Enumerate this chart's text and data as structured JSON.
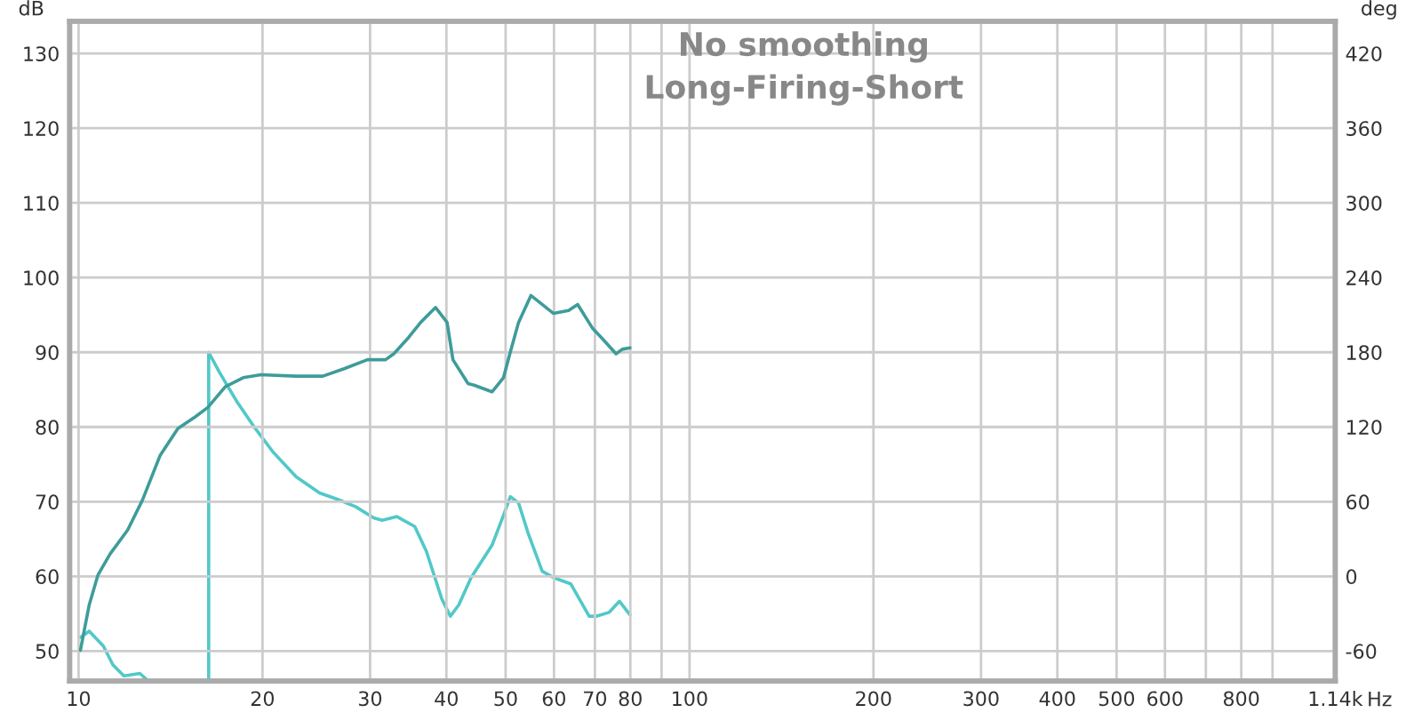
{
  "chart_data": {
    "type": "line",
    "title": "No smoothing",
    "subtitle": "Long-Firing-Short",
    "xlabel": "Hz",
    "ylabel": "dB",
    "y2label": "deg",
    "log": "x",
    "grid": true,
    "marker": "none",
    "line_style": "solid",
    "xlim": [
      9.67,
      1140
    ],
    "xticks": [
      10,
      20,
      30,
      40,
      50,
      60,
      70,
      80,
      {
        "value": 90,
        "label": null
      },
      100,
      200,
      300,
      400,
      500,
      600,
      {
        "value": 700,
        "label": null
      },
      800,
      {
        "value": 900,
        "label": null
      },
      {
        "value": 1140,
        "label": "1.14k"
      }
    ],
    "ylim": [
      46,
      134.3
    ],
    "yticks": [
      50,
      60,
      70,
      80,
      90,
      100,
      110,
      120,
      130
    ],
    "y2lim": [
      -84,
      445.8
    ],
    "y2ticks": [
      -60,
      0,
      60,
      120,
      180,
      240,
      300,
      360,
      420
    ],
    "series": [
      {
        "color": "#3e9c9a",
        "x": [
          10.07,
          10.41,
          10.76,
          11.26,
          12.03,
          12.72,
          13.6,
          14.54,
          15.55,
          16.27,
          17.39,
          18.6,
          19.88,
          22.7,
          25.1,
          27.2,
          29.7,
          31.8,
          32.8,
          34.7,
          36.3,
          38.4,
          40.1,
          41.0,
          43.4,
          44.4,
          47.5,
          49.6,
          50.8,
          52.5,
          55.0,
          56.6,
          59.9,
          63.4,
          65.6,
          69.4,
          72.4,
          75.8,
          77.6,
          79.9
        ],
        "values": [
          50.1,
          56.2,
          60.2,
          63,
          66.2,
          70.2,
          76.2,
          79.8,
          81.4,
          82.6,
          85.4,
          86.6,
          87,
          86.8,
          86.8,
          87.8,
          89,
          89,
          89.8,
          92,
          94,
          96,
          94,
          89,
          85.8,
          85.6,
          84.7,
          86.6,
          89.8,
          94,
          97.6,
          96.8,
          95.2,
          95.6,
          96.4,
          93.2,
          91.6,
          89.8,
          90.4,
          90.6
        ]
      },
      {
        "color": "#52c8c8",
        "axis": "y2",
        "x": [
          10.07,
          10.41,
          10.98,
          11.38,
          11.86,
          12.6,
          13.0,
          14.5,
          16.33,
          16.33,
          17.0,
          18.18,
          19.45,
          20.8,
          22.7,
          24.8,
          26.5,
          28.4,
          30.4,
          31.4,
          33.2,
          35.5,
          37.1,
          39.3,
          40.6,
          41.9,
          43.9,
          47.5,
          49.6,
          50.9,
          52.5,
          54.4,
          57.4,
          59.9,
          63.9,
          68.5,
          70.5,
          73.8,
          76.8,
          79.9
        ],
        "values": [
          -49,
          -44,
          -56,
          -71,
          -80,
          -78,
          -84,
          null,
          -84,
          180,
          164,
          140,
          119,
          100,
          80,
          67,
          62,
          56,
          47,
          45,
          48,
          40,
          20,
          -18,
          -32,
          -23,
          -1,
          25,
          49,
          64,
          59,
          35,
          4,
          -1,
          -6,
          -32,
          -32,
          -29,
          -20,
          -31
        ]
      }
    ]
  }
}
